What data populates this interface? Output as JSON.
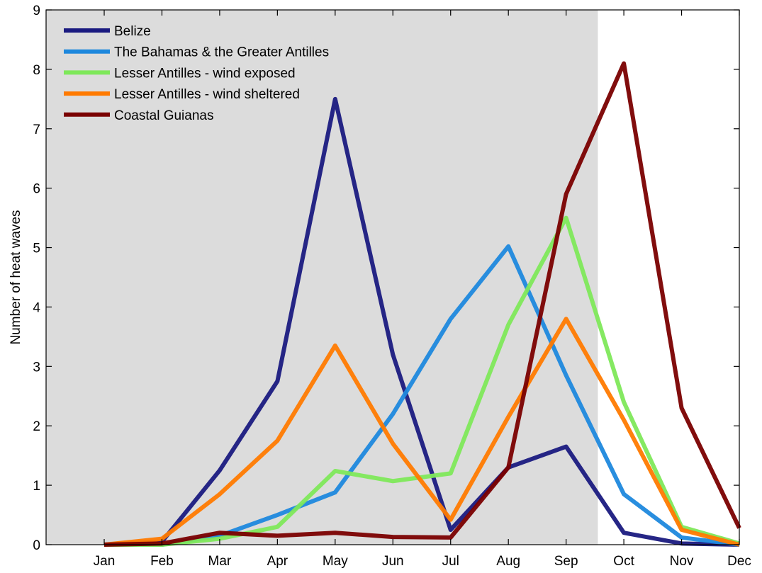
{
  "chart_data": {
    "type": "line",
    "ylabel": "Number of heat waves",
    "xlabel": "",
    "categories": [
      "Jan",
      "Feb",
      "Mar",
      "Apr",
      "May",
      "Jun",
      "Jul",
      "Aug",
      "Sep",
      "Oct",
      "Nov",
      "Dec"
    ],
    "ylim": [
      0,
      9
    ],
    "yticks": [
      0,
      1,
      2,
      3,
      4,
      5,
      6,
      7,
      8,
      9
    ],
    "legend_position": "top-left",
    "shaded_periods": [
      {
        "from": 0.0,
        "to": 8.55
      },
      {
        "from": 11.45,
        "to": 12.0
      }
    ],
    "shade_color": "#dcdcdc",
    "series": [
      {
        "name": "Belize",
        "color": "#1a1a80",
        "values": [
          0,
          0.05,
          1.25,
          2.75,
          7.5,
          3.2,
          0.25,
          1.3,
          1.65,
          0.2,
          0.02,
          0
        ]
      },
      {
        "name": "The Bahamas & the Greater Antilles",
        "color": "#1e88dd",
        "values": [
          0,
          0,
          0.15,
          0.5,
          0.88,
          2.2,
          3.8,
          5.02,
          2.85,
          0.85,
          0.12,
          0
        ]
      },
      {
        "name": "Lesser Antilles - wind exposed",
        "color": "#7ee85a",
        "values": [
          0,
          0,
          0.1,
          0.3,
          1.24,
          1.07,
          1.2,
          3.7,
          5.5,
          2.4,
          0.3,
          0.02
        ]
      },
      {
        "name": "Lesser Antilles - wind sheltered",
        "color": "#ff7a00",
        "values": [
          0,
          0.1,
          0.85,
          1.75,
          3.35,
          1.7,
          0.42,
          2.15,
          3.8,
          2.1,
          0.25,
          0
        ]
      },
      {
        "name": "Coastal Guianas",
        "color": "#7a0000",
        "values": [
          0,
          0.02,
          0.2,
          0.15,
          0.2,
          0.13,
          0.12,
          1.3,
          5.9,
          8.1,
          2.3,
          0.28
        ]
      }
    ]
  }
}
